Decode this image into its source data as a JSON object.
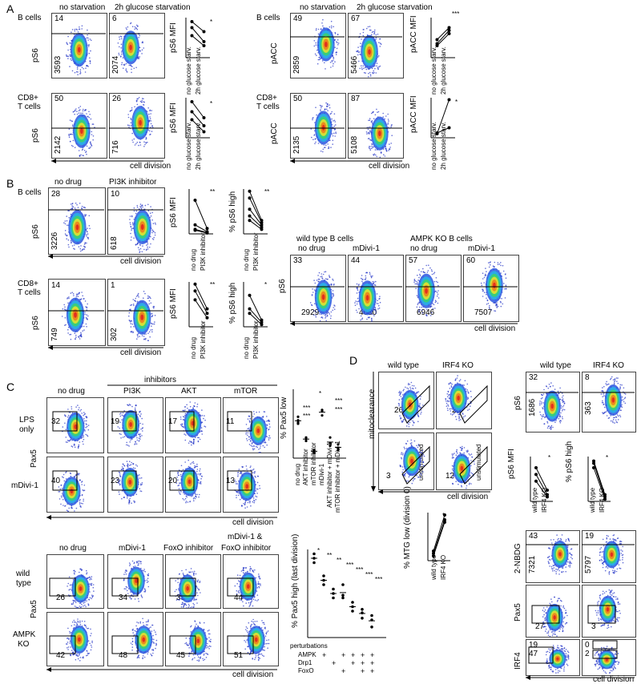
{
  "panels": {
    "A": "A",
    "B": "B",
    "C": "C",
    "D": "D"
  },
  "A": {
    "left": {
      "col1": "no starvation",
      "col2": "2h glucose starvation",
      "row1_label": "B cells",
      "row2_label_a": "CD8+",
      "row2_label_b": "T cells",
      "yaxis": "pS6",
      "row1": {
        "pct1": "14",
        "mfi1": "3593",
        "pct2": "6",
        "mfi2": "2074"
      },
      "row2": {
        "pct1": "50",
        "mfi1": "2142",
        "pct2": "26",
        "mfi2": "716"
      },
      "mini_y": "pS6 MFI",
      "mini_x1": "no glucose starv.",
      "mini_x2": "2h glucose starv.",
      "mini1_ticks": [
        "0",
        "2000",
        "4000",
        "6000"
      ],
      "mini2_ticks": [
        "0",
        "1000",
        "2000",
        "3000",
        "4000"
      ],
      "sig1": "*",
      "sig2": "*"
    },
    "right": {
      "col1": "no starvation",
      "col2": "2h glucose starvation",
      "row1_label": "B cells",
      "row2_label_a": "CD8+",
      "row2_label_b": "T cells",
      "yaxis": "pACC",
      "row1": {
        "pct1": "49",
        "mfi1": "2859",
        "pct2": "67",
        "mfi2": "5466"
      },
      "row2": {
        "pct1": "50",
        "mfi1": "2135",
        "pct2": "87",
        "mfi2": "5108"
      },
      "mini_y": "pACC MFI",
      "mini_x1": "no glucose starv.",
      "mini_x2": "2h glucose starv.",
      "mini1_ticks": [
        "0",
        "2000",
        "4000",
        "6000",
        "8000"
      ],
      "mini2_ticks": [
        "0",
        "5000",
        "10000",
        "15000",
        "20000"
      ],
      "sig1": "***",
      "sig2": "*"
    },
    "xaxis": "cell division"
  },
  "B": {
    "col1": "no drug",
    "col2": "PI3K inhibitor",
    "row1_label": "B cells",
    "row2_label_a": "CD8+",
    "row2_label_b": "T cells",
    "yaxis": "pS6",
    "row1": {
      "pct1": "28",
      "mfi1": "3226",
      "pct2": "10",
      "mfi2": "618"
    },
    "row2": {
      "pct1": "14",
      "mfi1": "749",
      "pct2": "1",
      "mfi2": "302"
    },
    "mini_mfi": "pS6 MFI",
    "mini_high": "% pS6 high",
    "mini_x1": "no drug",
    "mini_x2": "PI3K inhibitor",
    "m1_ticks": [
      "0",
      "5000",
      "10000",
      "15000"
    ],
    "m2_ticks": [
      "0",
      "10",
      "20",
      "30",
      "40"
    ],
    "m3_ticks": [
      "0",
      "200",
      "400",
      "600",
      "800"
    ],
    "m4_ticks": [
      "0",
      "10",
      "20",
      "30",
      "40"
    ],
    "sig": [
      "**",
      "**",
      "**",
      "*"
    ],
    "xaxis": "cell division",
    "ampk": {
      "group1": "wild type B cells",
      "group2": "AMPK KO B cells",
      "cols": [
        "no drug",
        "mDivi-1",
        "no drug",
        "mDivi-1"
      ],
      "pcts": [
        "33",
        "44",
        "57",
        "60"
      ],
      "mfis": [
        "2929",
        "4680",
        "6946",
        "7507"
      ],
      "yaxis": "pS6",
      "xaxis": "cell division"
    }
  },
  "C": {
    "inhibitors": "inhibitors",
    "cols": [
      "no drug",
      "PI3K",
      "AKT",
      "mTOR"
    ],
    "row1_label_a": "LPS",
    "row1_label_b": "only",
    "row2_label": "mDivi-1",
    "yaxis": "Pax5",
    "row1_vals": [
      "32",
      "19",
      "17",
      "11"
    ],
    "row2_vals": [
      "40",
      "23",
      "20",
      "13"
    ],
    "xaxis": "cell division",
    "scatter1": {
      "ylabel": "% Pax5 low",
      "ticks": [
        "0",
        "20",
        "40",
        "60"
      ],
      "xcats": [
        "no drug",
        "AKT inhibitor",
        "mTOR inhibitor",
        "mDivi-1",
        "AKT inhibitor + mDivi-1",
        "mTOR inhibitor + mDivi-1"
      ],
      "sigs": [
        "*",
        "***",
        "***",
        "***",
        "***"
      ]
    },
    "lower_cols": [
      "no drug",
      "mDivi-1",
      "FoxO inhibitor",
      "mDivi-1 &",
      "FoxO inhibitor"
    ],
    "lower_row1_a": "wild",
    "lower_row1_b": "type",
    "lower_row2_a": "AMPK",
    "lower_row2_b": "KO",
    "lower_row1_vals": [
      "26",
      "34",
      "33",
      "44"
    ],
    "lower_row2_vals": [
      "42",
      "48",
      "45",
      "51"
    ],
    "scatter2": {
      "ylabel": "% Pax5 high (last division)",
      "ticks": [
        "0",
        "10",
        "20",
        "30",
        "40",
        "50",
        "60"
      ],
      "sigs": [
        "*",
        "**",
        "**",
        "***",
        "***",
        "***",
        "***"
      ],
      "pert_title": "perturbations",
      "pert_rows": [
        "AMPK",
        "Drp1",
        "FoxO"
      ],
      "plus": "+"
    }
  },
  "D": {
    "col1": "wild type",
    "col2": "IRF4 KO",
    "yaxis": "mitoclearance",
    "top_vals": [
      "26",
      "25"
    ],
    "unstim": "unstimulated",
    "bottom_vals": [
      "3",
      "12"
    ],
    "xaxis": "cell division",
    "mtg": {
      "ylabel": "% MTG low (division 0)",
      "ticks": [
        "0",
        "10",
        "20",
        "30",
        "40"
      ],
      "x1": "wild type",
      "x2": "IRF4 KO",
      "sig": "*"
    },
    "right": {
      "col1": "wild type",
      "col2": "IRF4 KO",
      "ps6": {
        "label": "pS6",
        "pct1": "32",
        "mfi1": "1686",
        "pct2": "8",
        "mfi2": "363"
      },
      "mini_mfi": "pS6 MFI",
      "mini_high": "% pS6 high",
      "mfi_ticks": [
        "0",
        "2000",
        "4000",
        "6000",
        "8000"
      ],
      "high_ticks": [
        "0",
        "10",
        "20",
        "30",
        "40"
      ],
      "mini_x1": "wild type",
      "mini_x2": "IRF4 KO",
      "sig": [
        "*",
        "*"
      ],
      "nbdg": {
        "label": "2-NBDG",
        "pct1": "43",
        "mfi1": "7321",
        "pct2": "19",
        "mfi2": "5797"
      },
      "pax5": {
        "label": "Pax5",
        "v1": "27",
        "v2": "3"
      },
      "irf4": {
        "label": "IRF4",
        "a1": "19",
        "b1": "47",
        "a2": "0",
        "b2": "2"
      },
      "xaxis": "cell division"
    }
  }
}
